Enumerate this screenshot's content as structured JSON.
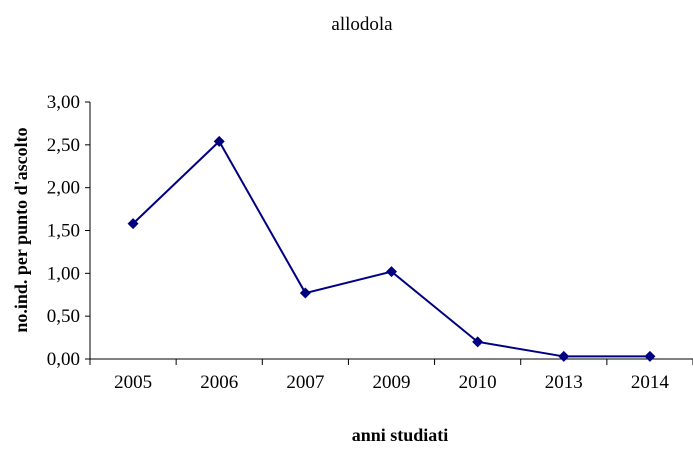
{
  "chart_data": {
    "type": "line",
    "title": "allodola",
    "xlabel": "anni studiati",
    "ylabel": "no.ind. per punto d'ascolto",
    "categories": [
      "2005",
      "2006",
      "2007",
      "2009",
      "2010",
      "2013",
      "2014"
    ],
    "series": [
      {
        "values": [
          1.58,
          2.54,
          0.77,
          1.02,
          0.2,
          0.03,
          0.03
        ]
      }
    ],
    "ylim": [
      0,
      3
    ],
    "yticks": [
      "0,00",
      "0,50",
      "1,00",
      "1,50",
      "2,00",
      "2,50",
      "3,00"
    ],
    "grid": false,
    "legend": "none",
    "colors": {
      "line": "#000080",
      "marker": "#000080",
      "axis": "#000000"
    }
  }
}
